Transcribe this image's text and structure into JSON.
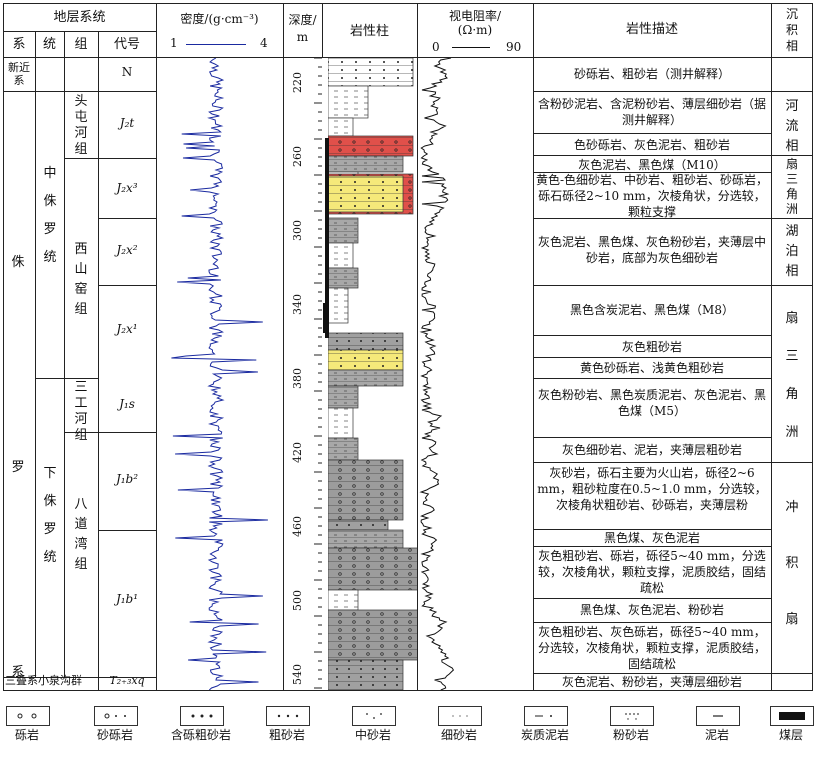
{
  "header": {
    "strat_system": "地层系统",
    "xi": "系",
    "tong": "统",
    "zu": "组",
    "daihao": "代号",
    "density_title": "密度/(g·cm⁻³)",
    "density_min": "1",
    "density_max": "4",
    "depth_title": "深度/",
    "depth_unit": "m",
    "lithology": "岩性柱",
    "resistivity_title": "视电阻率/",
    "resistivity_unit": "(Ω·m)",
    "res_min": "0",
    "res_max": "90",
    "lith_desc": "岩性描述",
    "facies": "沉积相"
  },
  "systems": {
    "neogene": "新近系",
    "jurassic": "侏罗系",
    "triassic_formation": "三叠系小泉沟群"
  },
  "series": {
    "middle": "中侏罗统",
    "lower": "下侏罗统"
  },
  "formations": {
    "toutunhe": "头屯河组",
    "xishanyao": "西山窑组",
    "sangonghe": "三工河组",
    "badaowan": "八道湾组"
  },
  "codes": [
    "N",
    "J₂t",
    "J₂x³",
    "J₂x²",
    "J₂x¹",
    "J₁s",
    "J₁b²",
    "J₁b¹",
    "T₂₊₃xq"
  ],
  "depth_ticks": [
    "220",
    "260",
    "300",
    "340",
    "380",
    "420",
    "460",
    "500",
    "540"
  ],
  "descriptions": [
    "砂砾岩、粗砂岩（测井解释）",
    "含粉砂泥岩、含泥粉砂岩、薄层细砂岩（据测井解释）",
    "色砂砾岩、灰色泥岩、粗砂岩",
    "灰色泥岩、黑色煤（M10）",
    "黄色-色细砂岩、中砂岩、粗砂岩、砂砾岩，砾石砾径2~10 mm，次棱角状，分选较，颗粒支撑",
    "灰色泥岩、黑色煤、灰色粉砂岩，夹薄层中砂岩，底部为灰色细砂岩",
    "黑色含炭泥岩、黑色煤（M8）",
    "灰色粗砂岩",
    "黄色砂砾岩、浅黄色粗砂岩",
    "灰色粉砂岩、黑色炭质泥岩、灰色泥岩、黑色煤（M5）",
    "灰色细砂岩、泥岩，夹薄层粗砂岩",
    "灰砂岩，砾石主要为火山岩，砾径2~6 mm，粗砂粒度在0.5~1.0 mm，分选较，次棱角状粗砂岩、砂砾岩，夹薄层粉",
    "黑色煤、灰色泥岩",
    "灰色粗砂岩、砾岩，砾径5~40 mm，分选较，次棱角状，颗粒支撑，泥质胶结，固结疏松",
    "黑色煤、灰色泥岩、粉砂岩",
    "灰色粗砂岩、灰色砾岩，砾径5~40 mm，分选较，次棱角状，颗粒支撑，泥质胶结，固结疏松",
    "灰色泥岩、粉砂岩，夹薄层细砂岩"
  ],
  "facies": {
    "river": "河流相",
    "fan1": "扇三角洲",
    "lake": "湖泊相",
    "fan2": "扇三角洲",
    "alluvial": "冲积扇"
  },
  "legend": [
    "砾岩",
    "砂砾岩",
    "含砾粗砂岩",
    "粗砂岩",
    "中砂岩",
    "细砂岩",
    "炭质泥岩",
    "粉砂岩",
    "泥岩",
    "煤层"
  ]
}
